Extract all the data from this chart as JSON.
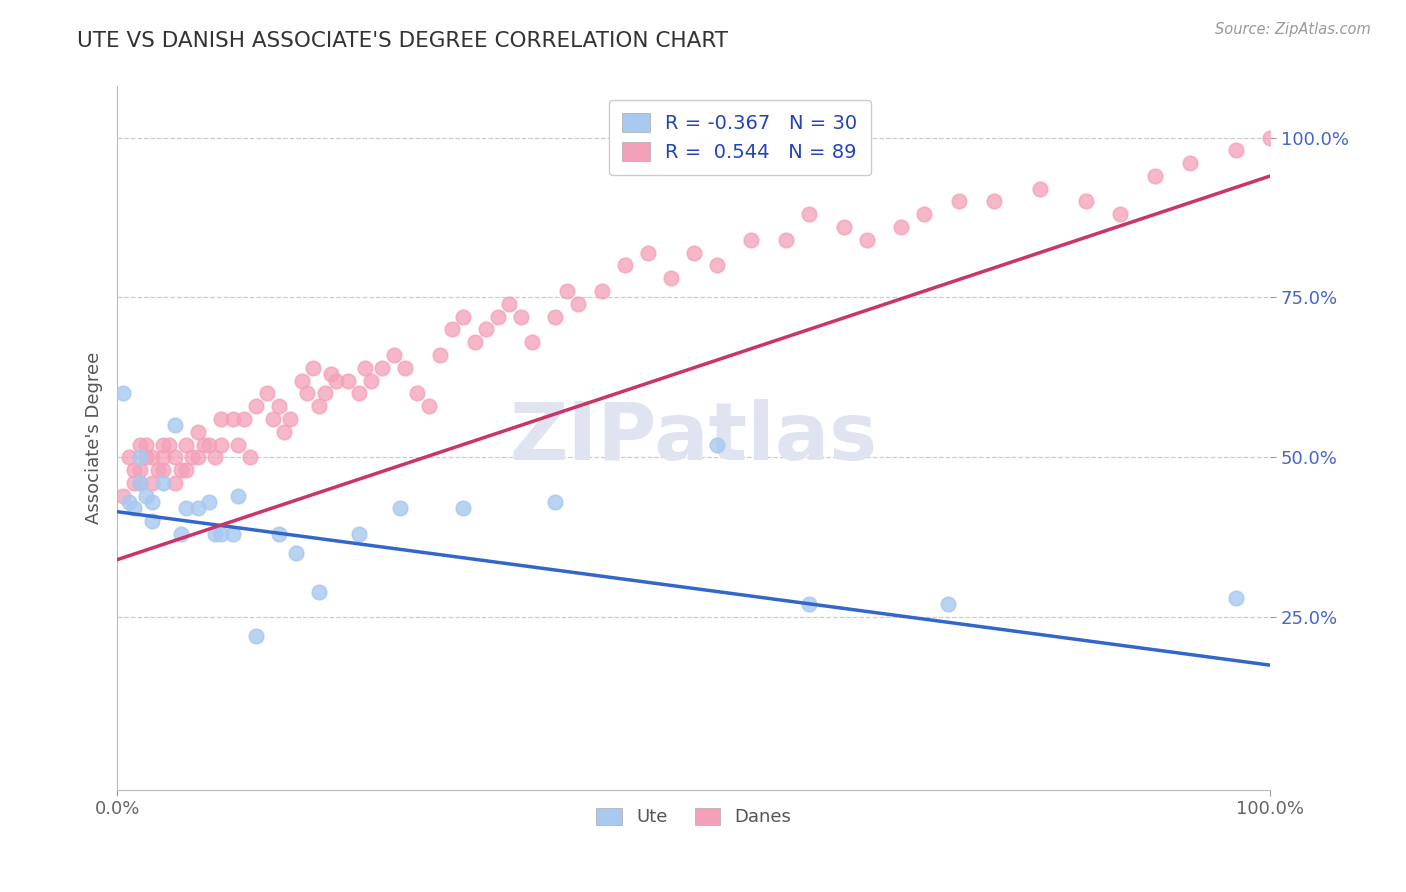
{
  "title": "UTE VS DANISH ASSOCIATE'S DEGREE CORRELATION CHART",
  "source": "Source: ZipAtlas.com",
  "ylabel": "Associate's Degree",
  "xlim": [
    0.0,
    1.0
  ],
  "ylim": [
    -0.02,
    1.08
  ],
  "ytick_positions": [
    0.25,
    0.5,
    0.75,
    1.0
  ],
  "ytick_labels": [
    "25.0%",
    "50.0%",
    "75.0%",
    "100.0%"
  ],
  "legend_r_ute": "-0.367",
  "legend_n_ute": "30",
  "legend_r_danes": "0.544",
  "legend_n_danes": "89",
  "ute_color": "#A8C8F0",
  "danes_color": "#F4A0B8",
  "ute_edge_color": "#A8C8F0",
  "danes_edge_color": "#F4A0B8",
  "ute_line_color": "#3366CC",
  "danes_line_color": "#CC3366",
  "background_color": "#ffffff",
  "grid_color": "#cccccc",
  "title_color": "#333333",
  "watermark_color": "#E0E4F0",
  "ute_line_y0": 0.415,
  "ute_line_y1": 0.175,
  "danes_line_y0": 0.34,
  "danes_line_y1": 0.94,
  "ute_scatter_x": [
    0.005,
    0.01,
    0.015,
    0.02,
    0.02,
    0.025,
    0.03,
    0.03,
    0.04,
    0.05,
    0.055,
    0.06,
    0.07,
    0.08,
    0.085,
    0.09,
    0.1,
    0.105,
    0.12,
    0.14,
    0.155,
    0.175,
    0.21,
    0.245,
    0.3,
    0.38,
    0.52,
    0.6,
    0.72,
    0.97
  ],
  "ute_scatter_y": [
    0.6,
    0.43,
    0.42,
    0.46,
    0.5,
    0.44,
    0.43,
    0.4,
    0.46,
    0.55,
    0.38,
    0.42,
    0.42,
    0.43,
    0.38,
    0.38,
    0.38,
    0.44,
    0.22,
    0.38,
    0.35,
    0.29,
    0.38,
    0.42,
    0.42,
    0.43,
    0.52,
    0.27,
    0.27,
    0.28
  ],
  "danes_scatter_x": [
    0.005,
    0.01,
    0.015,
    0.015,
    0.02,
    0.02,
    0.02,
    0.025,
    0.025,
    0.03,
    0.03,
    0.035,
    0.04,
    0.04,
    0.04,
    0.045,
    0.05,
    0.05,
    0.055,
    0.06,
    0.06,
    0.065,
    0.07,
    0.07,
    0.075,
    0.08,
    0.085,
    0.09,
    0.09,
    0.1,
    0.105,
    0.11,
    0.115,
    0.12,
    0.13,
    0.135,
    0.14,
    0.145,
    0.15,
    0.16,
    0.165,
    0.17,
    0.175,
    0.18,
    0.185,
    0.19,
    0.2,
    0.21,
    0.215,
    0.22,
    0.23,
    0.24,
    0.25,
    0.26,
    0.27,
    0.28,
    0.29,
    0.3,
    0.31,
    0.32,
    0.33,
    0.34,
    0.35,
    0.36,
    0.38,
    0.39,
    0.4,
    0.42,
    0.44,
    0.46,
    0.48,
    0.5,
    0.52,
    0.55,
    0.58,
    0.6,
    0.63,
    0.65,
    0.68,
    0.7,
    0.73,
    0.76,
    0.8,
    0.84,
    0.87,
    0.9,
    0.93,
    0.97,
    1.0
  ],
  "danes_scatter_y": [
    0.44,
    0.5,
    0.46,
    0.48,
    0.52,
    0.48,
    0.46,
    0.52,
    0.5,
    0.5,
    0.46,
    0.48,
    0.52,
    0.48,
    0.5,
    0.52,
    0.5,
    0.46,
    0.48,
    0.48,
    0.52,
    0.5,
    0.5,
    0.54,
    0.52,
    0.52,
    0.5,
    0.52,
    0.56,
    0.56,
    0.52,
    0.56,
    0.5,
    0.58,
    0.6,
    0.56,
    0.58,
    0.54,
    0.56,
    0.62,
    0.6,
    0.64,
    0.58,
    0.6,
    0.63,
    0.62,
    0.62,
    0.6,
    0.64,
    0.62,
    0.64,
    0.66,
    0.64,
    0.6,
    0.58,
    0.66,
    0.7,
    0.72,
    0.68,
    0.7,
    0.72,
    0.74,
    0.72,
    0.68,
    0.72,
    0.76,
    0.74,
    0.76,
    0.8,
    0.82,
    0.78,
    0.82,
    0.8,
    0.84,
    0.84,
    0.88,
    0.86,
    0.84,
    0.86,
    0.88,
    0.9,
    0.9,
    0.92,
    0.9,
    0.88,
    0.94,
    0.96,
    0.98,
    1.0
  ]
}
